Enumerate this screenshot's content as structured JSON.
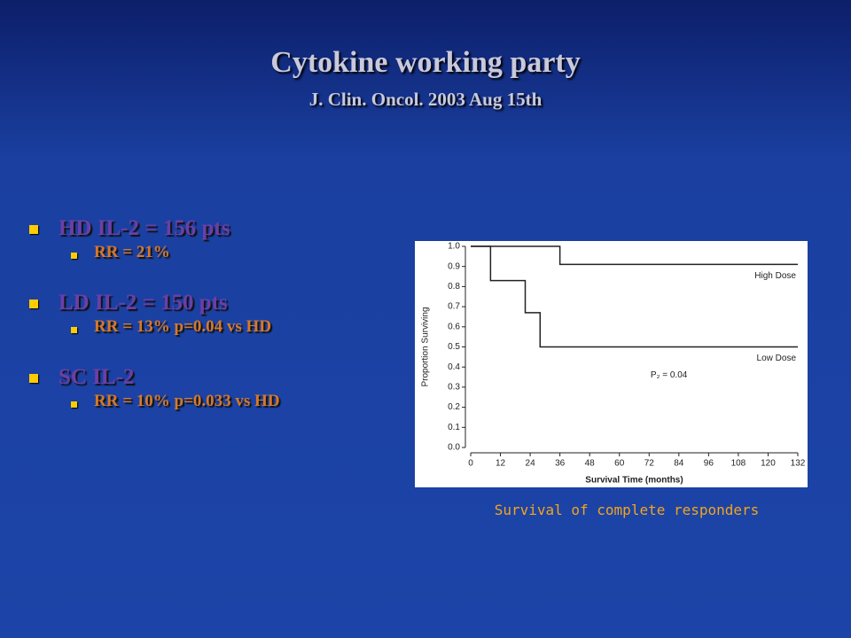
{
  "slide": {
    "title": "Cytokine working party",
    "subtitle": "J. Clin. Oncol. 2003 Aug 15th",
    "bullets": [
      {
        "text": "HD IL-2 = 156 pts",
        "sub": [
          "RR = 21%"
        ]
      },
      {
        "text": "LD IL-2 = 150 pts",
        "sub": [
          "RR = 13% p=0.04 vs HD"
        ]
      },
      {
        "text": "SC IL-2",
        "sub": [
          "RR = 10% p=0.033 vs HD"
        ]
      }
    ],
    "caption": "Survival of complete responders"
  },
  "chart_data": {
    "type": "line",
    "x_label": "Survival Time (months)",
    "y_label": "Proportion Surviving",
    "annotation": "P₂ = 0.04",
    "xlim": [
      0,
      132
    ],
    "xticks": [
      0,
      12,
      24,
      36,
      48,
      60,
      72,
      84,
      96,
      108,
      120,
      132
    ],
    "ylim": [
      0,
      1
    ],
    "yticks": [
      {
        "value": 0,
        "label": "0.0"
      },
      0.1,
      0.2,
      0.3,
      0.4,
      0.5,
      0.6,
      0.7,
      0.8,
      0.9,
      {
        "value": 1,
        "label": "1.0"
      }
    ],
    "series": [
      {
        "name": "High Dose",
        "color": "#222222",
        "x": [
          0,
          36,
          36,
          132
        ],
        "values": [
          1,
          1,
          0.91,
          0.91
        ]
      },
      {
        "name": "Low Dose",
        "color": "#222222",
        "x": [
          0,
          8,
          8,
          22,
          22,
          28,
          28,
          132
        ],
        "values": [
          1,
          1,
          0.83,
          0.83,
          0.67,
          0.67,
          0.5,
          0.5
        ]
      }
    ]
  }
}
